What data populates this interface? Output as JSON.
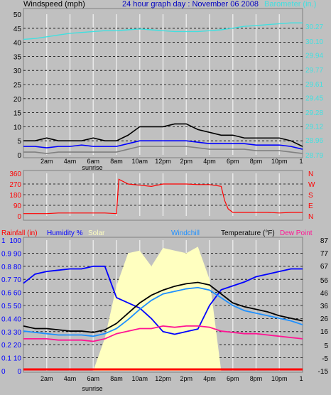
{
  "chart_data": [
    {
      "type": "line",
      "title": "24 hour graph day : November 06 2008",
      "left_axis_label": "Windspeed (mph)",
      "right_axis_label": "Barometer (in.)",
      "left_ticks": [
        "0",
        "5",
        "10",
        "15",
        "20",
        "25",
        "30",
        "35",
        "40",
        "45",
        "50"
      ],
      "right_ticks": [
        "28.79",
        "28.96",
        "29.12",
        "29.28",
        "29.45",
        "29.61",
        "29.77",
        "29.94",
        "30.10",
        "30.27"
      ],
      "ylim": [
        0,
        50
      ],
      "baro_lim": [
        28.79,
        30.41
      ],
      "x_labels": [
        "2am",
        "4am",
        "6am",
        "8am",
        "10am",
        "12pm",
        "2pm",
        "4pm",
        "6pm",
        "8pm",
        "10pm",
        "1"
      ],
      "sunrise_label": "sunrise",
      "x": [
        0,
        1,
        2,
        3,
        4,
        5,
        6,
        7,
        8,
        9,
        10,
        11,
        12,
        13,
        14,
        15,
        16,
        17,
        18,
        19,
        20,
        21,
        22,
        23,
        24
      ],
      "series": [
        {
          "key": "barometer",
          "color": "#40e0e0",
          "values": [
            30.12,
            30.13,
            30.15,
            30.17,
            30.19,
            30.2,
            30.21,
            30.22,
            30.22,
            30.23,
            30.24,
            30.23,
            30.22,
            30.21,
            30.21,
            30.21,
            30.22,
            30.23,
            30.25,
            30.27,
            30.28,
            30.29,
            30.3,
            30.31,
            30.31
          ]
        },
        {
          "key": "wind_avg",
          "color": "#0000ff",
          "values": [
            3,
            3,
            2.5,
            3,
            3,
            3.5,
            3,
            3,
            3,
            4,
            5,
            5,
            5,
            5,
            5,
            4.5,
            4,
            4,
            4,
            4,
            3.5,
            3.5,
            3.5,
            3,
            2
          ]
        },
        {
          "key": "wind_gust",
          "color": "#000000",
          "values": [
            5,
            5,
            6,
            5,
            5,
            5,
            6,
            5,
            5,
            7,
            10,
            10,
            10,
            11,
            11,
            9,
            8,
            7,
            7,
            6,
            6,
            6,
            6,
            5,
            3
          ]
        },
        {
          "key": "wind_min",
          "color": "#808080",
          "values": [
            1,
            1,
            0.5,
            1,
            1,
            1,
            1,
            1,
            1,
            2,
            3,
            3,
            3,
            3,
            3,
            2.5,
            2,
            2,
            2,
            2,
            1.5,
            1.5,
            1.5,
            1,
            0.5
          ]
        }
      ]
    },
    {
      "type": "line",
      "left_ticks": [
        "0",
        "90",
        "180",
        "270",
        "360"
      ],
      "right_ticks": [
        "N",
        "W",
        "S",
        "E",
        "N"
      ],
      "ylim": [
        0,
        360
      ],
      "x": [
        0,
        1,
        2,
        3,
        4,
        5,
        6,
        7,
        8,
        8.2,
        9,
        10,
        11,
        12,
        13,
        14,
        15,
        16,
        17,
        17.3,
        17.6,
        18,
        19,
        20,
        21,
        22,
        23,
        24
      ],
      "series": [
        {
          "key": "wind_direction",
          "color": "#ff0000",
          "values": [
            20,
            20,
            20,
            25,
            25,
            25,
            25,
            25,
            20,
            310,
            270,
            260,
            250,
            270,
            270,
            270,
            265,
            265,
            250,
            130,
            60,
            30,
            30,
            30,
            30,
            25,
            30,
            30
          ]
        }
      ]
    },
    {
      "type": "line",
      "legend": [
        "Rainfall (in)",
        "Humidity %",
        "Solar",
        "Windchill",
        "Temperature (°F)",
        "Dew Point"
      ],
      "left_ticks_rain": [
        "0",
        "0.1",
        "0.2",
        "0.3",
        "0.4",
        "0.5",
        "0.6",
        "0.7",
        "0.8",
        "0.9",
        "1"
      ],
      "left_ticks_humidity": [
        "0",
        "10",
        "20",
        "30",
        "40",
        "50",
        "60",
        "70",
        "80",
        "90",
        "100"
      ],
      "right_ticks": [
        "-15",
        "-5",
        "5",
        "16",
        "26",
        "36",
        "46",
        "56",
        "67",
        "77",
        "87"
      ],
      "temp_lim": [
        -15,
        87
      ],
      "x_labels": [
        "2am",
        "4am",
        "6am",
        "8am",
        "10am",
        "12pm",
        "2pm",
        "4pm",
        "6pm",
        "8pm",
        "10pm",
        "1"
      ],
      "sunrise_label": "sunrise",
      "x": [
        0,
        1,
        2,
        3,
        4,
        5,
        6,
        7,
        8,
        9,
        10,
        11,
        12,
        13,
        14,
        15,
        16,
        17,
        18,
        19,
        20,
        21,
        22,
        23,
        24
      ],
      "series": [
        {
          "key": "humidity",
          "color": "#0000ff",
          "values": [
            67,
            74,
            76,
            77,
            78,
            78,
            80,
            80,
            56,
            52,
            48,
            40,
            30,
            28,
            30,
            32,
            50,
            62,
            65,
            68,
            72,
            74,
            76,
            78,
            78
          ]
        },
        {
          "key": "temperature",
          "color": "#000000",
          "values": [
            20,
            18,
            18,
            17,
            16,
            16,
            15,
            17,
            22,
            30,
            38,
            44,
            48,
            51,
            53,
            54,
            52,
            45,
            38,
            35,
            33,
            31,
            28,
            26,
            24
          ]
        },
        {
          "key": "windchill",
          "color": "#1e90ff",
          "values": [
            16,
            15,
            14,
            13,
            13,
            13,
            12,
            14,
            18,
            25,
            33,
            40,
            45,
            47,
            49,
            50,
            48,
            42,
            36,
            32,
            30,
            28,
            26,
            24,
            21
          ]
        },
        {
          "key": "dew_point",
          "color": "#ff1493",
          "values": [
            10,
            10,
            10,
            9,
            9,
            9,
            8,
            10,
            14,
            16,
            18,
            18,
            20,
            19,
            20,
            20,
            19,
            16,
            15,
            14,
            14,
            13,
            12,
            11,
            10
          ]
        },
        {
          "key": "solar",
          "color": "#ffffc0",
          "values": [
            0,
            0,
            0,
            0,
            0,
            0,
            0,
            25,
            65,
            90,
            92,
            80,
            94,
            92,
            90,
            95,
            70,
            0,
            0,
            0,
            0,
            0,
            0,
            0,
            0
          ]
        },
        {
          "key": "rainfall",
          "color": "#ff0000",
          "values": [
            0,
            0,
            0,
            0,
            0,
            0,
            0,
            0,
            0,
            0,
            0,
            0,
            0,
            0,
            0,
            0,
            0,
            0,
            0,
            0,
            0,
            0,
            0,
            0,
            0
          ]
        }
      ]
    }
  ]
}
